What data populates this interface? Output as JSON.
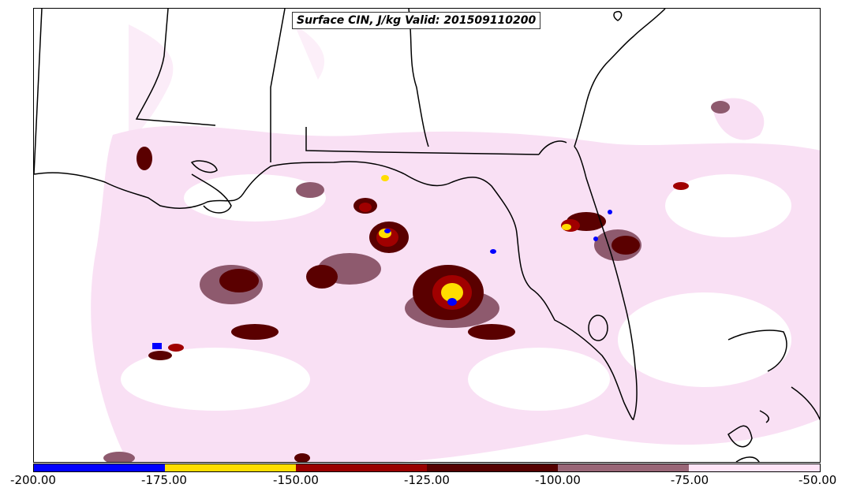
{
  "title": "Surface CIN, J/kg Valid: 201509110200",
  "colorbar": {
    "ticks": [
      "-200.00",
      "-175.00",
      "-150.00",
      "-125.00",
      "-100.00",
      "-75.00",
      "-50.00"
    ],
    "colors": [
      "#0000ff",
      "#ffdd00",
      "#990000",
      "#550000",
      "#996677",
      "#ffe4f7"
    ]
  },
  "palette": {
    "light_pink": "#f8dcf2",
    "mauve": "#8e5a6e",
    "maroon": "#5a0000",
    "red": "#990000",
    "yellow": "#ffdd00",
    "blue": "#0000ff",
    "coast_line": "#000000"
  }
}
